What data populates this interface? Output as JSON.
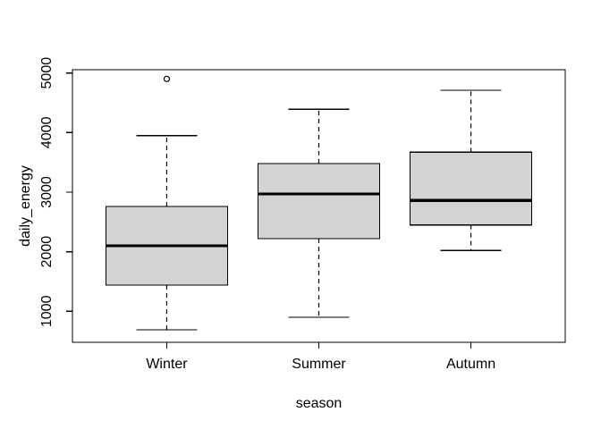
{
  "chart_data": {
    "type": "boxplot",
    "title": "",
    "xlabel": "season",
    "ylabel": "daily_energy",
    "categories": [
      "Winter",
      "Summer",
      "Autumn"
    ],
    "series": [
      {
        "name": "Winter",
        "whisker_low": 690,
        "q1": 1440,
        "median": 2100,
        "q3": 2760,
        "whisker_high": 3950,
        "outliers": [
          4900
        ]
      },
      {
        "name": "Summer",
        "whisker_low": 900,
        "q1": 2220,
        "median": 2970,
        "q3": 3480,
        "whisker_high": 4390,
        "outliers": []
      },
      {
        "name": "Autumn",
        "whisker_low": 2020,
        "q1": 2450,
        "median": 2860,
        "q3": 3670,
        "whisker_high": 4710,
        "outliers": []
      }
    ],
    "y_ticks": [
      1000,
      2000,
      3000,
      4000,
      5000
    ],
    "ylim": [
      480,
      5055
    ],
    "xlim": [
      0.38,
      3.62
    ],
    "box_width": 0.8,
    "staple_ratio": 0.5,
    "grid": false,
    "legend": null,
    "colors": {
      "box_fill": "#d3d3d3",
      "stroke": "#000000",
      "median": "#000000",
      "background": "#ffffff"
    }
  }
}
